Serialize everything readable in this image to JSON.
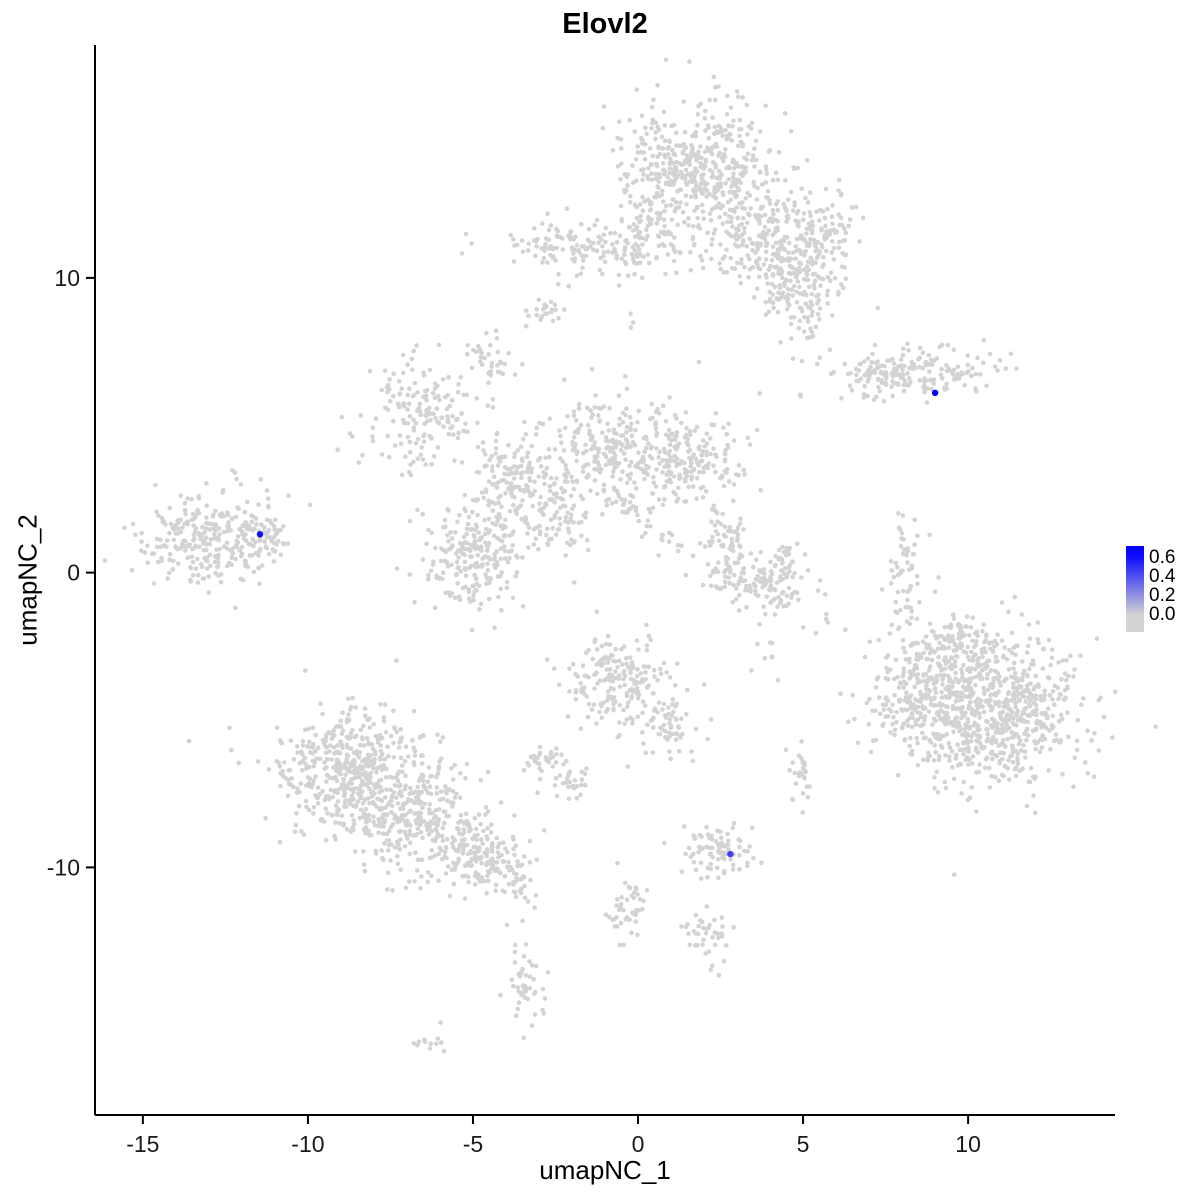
{
  "title": "Elovl2",
  "axes": {
    "x": {
      "label": "umapNC_1",
      "ticks": [
        -15,
        -10,
        -5,
        0,
        5,
        10
      ]
    },
    "y": {
      "label": "umapNC_2",
      "ticks": [
        -10,
        0,
        10
      ]
    }
  },
  "legend": {
    "labels": [
      "0.6",
      "0.4",
      "0.2",
      "0.0"
    ],
    "low_color": "#D3D3D3",
    "high_color": "#0000FF",
    "min_value": 0.0,
    "max_value": 0.65
  },
  "style": {
    "point_color": "#D3D3D3",
    "point_radius": 2.3,
    "highlight_radius": 3.2,
    "axis_color": "#000000",
    "background": "#FFFFFF"
  },
  "chart_data": {
    "type": "scatter",
    "title": "Elovl2",
    "xlabel": "umapNC_1",
    "ylabel": "umapNC_2",
    "xlim": [
      -16.45,
      14.45
    ],
    "ylim": [
      -18.4,
      17.9
    ],
    "grid": false,
    "legend_position": "right",
    "seed": 7,
    "clusters": [
      {
        "id": "top-main",
        "cx": 1.8,
        "cy": 13.8,
        "sx": 1.1,
        "sy": 1.1,
        "n": 450
      },
      {
        "id": "top-right-arm",
        "cx": 3.8,
        "cy": 11.6,
        "sx": 0.8,
        "sy": 0.9,
        "n": 220
      },
      {
        "id": "top-right-lower",
        "cx": 4.9,
        "cy": 9.8,
        "sx": 0.7,
        "sy": 0.9,
        "n": 180
      },
      {
        "id": "top-left-arm",
        "cx": -1.6,
        "cy": 11.1,
        "sx": 1.2,
        "sy": 0.45,
        "n": 140
      },
      {
        "id": "top-bridge",
        "cx": 0.5,
        "cy": 11.5,
        "sx": 0.7,
        "sy": 0.7,
        "n": 100
      },
      {
        "id": "top-right-nub",
        "cx": 5.6,
        "cy": 11.6,
        "sx": 0.5,
        "sy": 0.6,
        "n": 70
      },
      {
        "id": "small-upper-1",
        "cx": -2.8,
        "cy": 8.9,
        "sx": 0.35,
        "sy": 0.3,
        "n": 22
      },
      {
        "id": "small-upper-2",
        "cx": -4.5,
        "cy": 7.2,
        "sx": 0.35,
        "sy": 0.45,
        "n": 38
      },
      {
        "id": "right-upper-main",
        "cx": 8.7,
        "cy": 6.8,
        "sx": 1.3,
        "sy": 0.4,
        "rot": 8,
        "n": 160
      },
      {
        "id": "right-upper-tail",
        "cx": 7.1,
        "cy": 6.9,
        "sx": 0.6,
        "sy": 0.25,
        "n": 35
      },
      {
        "id": "mid-left-upper",
        "cx": -6.6,
        "cy": 5.5,
        "sx": 0.85,
        "sy": 0.95,
        "n": 170
      },
      {
        "id": "mid-center-a",
        "cx": -0.9,
        "cy": 4.2,
        "sx": 0.85,
        "sy": 0.8,
        "n": 190
      },
      {
        "id": "mid-center-b",
        "cx": 1.5,
        "cy": 3.8,
        "sx": 0.85,
        "sy": 0.85,
        "n": 210
      },
      {
        "id": "mid-link",
        "cx": -3.8,
        "cy": 3.2,
        "sx": 0.7,
        "sy": 0.7,
        "n": 120
      },
      {
        "id": "mid-left-lower",
        "cx": -5.0,
        "cy": 0.7,
        "sx": 0.75,
        "sy": 1.0,
        "n": 230
      },
      {
        "id": "mid-small",
        "cx": -2.6,
        "cy": 1.9,
        "sx": 0.6,
        "sy": 0.65,
        "n": 90
      },
      {
        "id": "mid-sparse",
        "cx": -2.2,
        "cy": 4.3,
        "sx": 1.3,
        "sy": 1.2,
        "n": 45
      },
      {
        "id": "mid-streak",
        "cx": -0.2,
        "cy": 2.0,
        "sx": 0.95,
        "sy": 0.14,
        "rot": -40,
        "n": 35
      },
      {
        "id": "far-left-main",
        "cx": -12.9,
        "cy": 1.2,
        "sx": 1.05,
        "sy": 0.75,
        "n": 300
      },
      {
        "id": "far-left-tip",
        "cx": -11.2,
        "cy": 1.3,
        "sx": 0.4,
        "sy": 0.3,
        "n": 35
      },
      {
        "id": "right-strip",
        "cx": 8.1,
        "cy": -0.1,
        "sx": 0.22,
        "sy": 1.1,
        "n": 55
      },
      {
        "id": "crescent-upper",
        "cx": 2.7,
        "cy": 1.1,
        "sx": 0.45,
        "sy": 0.6,
        "n": 55
      },
      {
        "id": "crescent-lower",
        "cx": 3.5,
        "cy": -0.4,
        "sx": 0.95,
        "sy": 0.45,
        "rot": -15,
        "n": 130
      },
      {
        "id": "crescent-tip",
        "cx": 4.4,
        "cy": 0.4,
        "sx": 0.3,
        "sy": 0.4,
        "n": 30
      },
      {
        "id": "right-big-main",
        "cx": 10.7,
        "cy": -4.5,
        "sx": 1.4,
        "sy": 1.25,
        "n": 850
      },
      {
        "id": "right-big-tail",
        "cx": 8.3,
        "cy": -4.0,
        "sx": 0.6,
        "sy": 1.0,
        "n": 140
      },
      {
        "id": "right-big-top",
        "cx": 9.6,
        "cy": -2.3,
        "sx": 0.5,
        "sy": 0.4,
        "n": 60
      },
      {
        "id": "center-low-main",
        "cx": -0.5,
        "cy": -3.7,
        "sx": 0.8,
        "sy": 0.75,
        "n": 200
      },
      {
        "id": "center-low-tail",
        "cx": 0.9,
        "cy": -5.1,
        "sx": 0.4,
        "sy": 0.5,
        "n": 55
      },
      {
        "id": "small-mid-1",
        "cx": -2.8,
        "cy": -6.3,
        "sx": 0.3,
        "sy": 0.3,
        "n": 30
      },
      {
        "id": "small-mid-2",
        "cx": -2.1,
        "cy": -7.1,
        "sx": 0.3,
        "sy": 0.3,
        "n": 30
      },
      {
        "id": "left-low-a",
        "cx": -8.7,
        "cy": -6.8,
        "sx": 1.15,
        "sy": 1.1,
        "n": 480
      },
      {
        "id": "left-low-b",
        "cx": -6.5,
        "cy": -8.4,
        "sx": 1.1,
        "sy": 0.9,
        "rot": -15,
        "n": 330
      },
      {
        "id": "left-low-c",
        "cx": -4.6,
        "cy": -9.8,
        "sx": 0.65,
        "sy": 0.55,
        "rot": -20,
        "n": 120
      },
      {
        "id": "left-low-tip",
        "cx": -3.8,
        "cy": -10.6,
        "sx": 0.3,
        "sy": 0.25,
        "n": 25
      },
      {
        "id": "bottom-small",
        "cx": 2.3,
        "cy": -9.4,
        "sx": 0.6,
        "sy": 0.45,
        "n": 85
      },
      {
        "id": "misc-1",
        "cx": 4.9,
        "cy": -6.9,
        "sx": 0.22,
        "sy": 0.5,
        "n": 28
      },
      {
        "id": "misc-2",
        "cx": -0.3,
        "cy": -11.3,
        "sx": 0.3,
        "sy": 0.65,
        "n": 45
      },
      {
        "id": "misc-3",
        "cx": 2.2,
        "cy": -12.2,
        "sx": 0.4,
        "sy": 0.45,
        "n": 40
      },
      {
        "id": "misc-4",
        "cx": -3.5,
        "cy": -14.0,
        "sx": 0.3,
        "sy": 0.75,
        "n": 48
      },
      {
        "id": "misc-5",
        "cx": -6.2,
        "cy": -15.9,
        "sx": 0.35,
        "sy": 0.18,
        "n": 12
      },
      {
        "id": "stray-1",
        "cx": -0.2,
        "cy": 8.6,
        "sx": 0.3,
        "sy": 0.3,
        "n": 3
      },
      {
        "id": "stray-2",
        "cx": 4.0,
        "cy": -2.7,
        "sx": 0.35,
        "sy": 0.35,
        "n": 8
      },
      {
        "id": "stray-3",
        "cx": 5.2,
        "cy": -1.6,
        "sx": 0.4,
        "sy": 0.4,
        "n": 5
      }
    ],
    "highlighted_cells": [
      {
        "x": 9.0,
        "y": 6.1,
        "value": 0.65
      },
      {
        "x": -11.45,
        "y": 1.3,
        "value": 0.6
      },
      {
        "x": 2.8,
        "y": -9.55,
        "value": 0.45
      }
    ]
  }
}
